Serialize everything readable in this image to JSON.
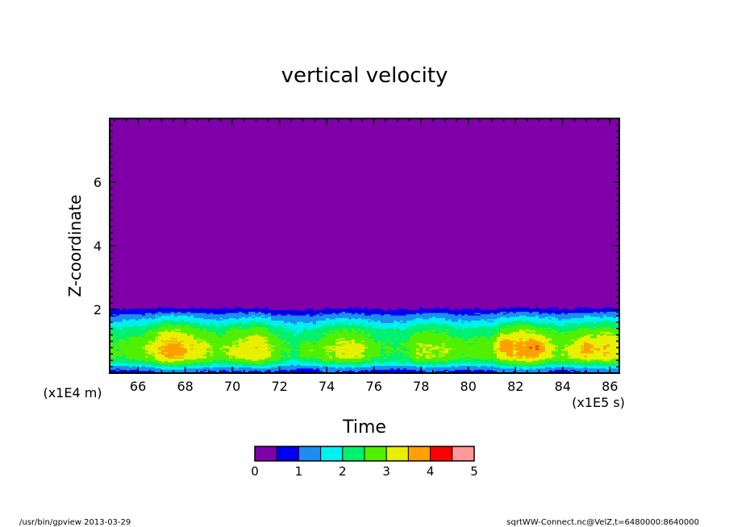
{
  "chart_data": {
    "type": "heatmap",
    "title": "vertical velocity",
    "xlabel": "Time",
    "ylabel": "Z-coordinate",
    "x_scale_label": "(x1E5 s)",
    "y_scale_label": "(x1E4 m)",
    "xlim": [
      64.8,
      86.4
    ],
    "ylim": [
      0,
      8
    ],
    "x_ticks": [
      66,
      68,
      70,
      72,
      74,
      76,
      78,
      80,
      82,
      84,
      86
    ],
    "y_ticks": [
      2,
      4,
      6
    ],
    "colorbar": {
      "min": 0,
      "max": 5,
      "step": 0.5,
      "tick_labels": [
        "0",
        "1",
        "2",
        "3",
        "4",
        "5"
      ],
      "colors": [
        "#7f00a8",
        "#0000ee",
        "#1e8cf0",
        "#00f0f0",
        "#00f070",
        "#50f000",
        "#e6f000",
        "#ffa000",
        "#ff0000",
        "#ff9a9a"
      ]
    },
    "profile": {
      "z": [
        0.0,
        0.1,
        0.2,
        0.3,
        0.5,
        0.8,
        1.1,
        1.4,
        1.6,
        1.8,
        1.95,
        2.1,
        8.0
      ],
      "mean_value": [
        0.7,
        1.0,
        1.4,
        2.0,
        2.7,
        2.8,
        2.6,
        2.2,
        1.7,
        1.2,
        0.7,
        0.2,
        0.1
      ]
    },
    "strong_events": [
      {
        "x": 73.2,
        "z": 0.75,
        "value": 3.3
      },
      {
        "x": 75.2,
        "z": 0.75,
        "value": 3.1
      },
      {
        "x": 81.5,
        "z": 0.9,
        "value": 3.4
      },
      {
        "x": 82.9,
        "z": 0.8,
        "value": 3.3
      },
      {
        "x": 85.0,
        "z": 0.8,
        "value": 3.2
      }
    ]
  },
  "footer": {
    "left": "/usr/bin/gpview   2013-03-29",
    "right": "sqrtWW-Connect.nc@VelZ,t=6480000:8640000"
  }
}
